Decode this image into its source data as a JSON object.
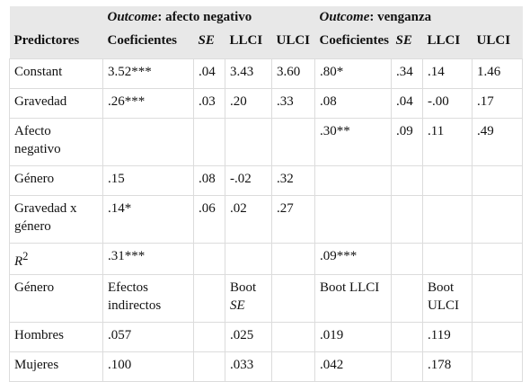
{
  "header": {
    "group1_label": "Outcome",
    "group1_rest": ": afecto negativo",
    "group2_label": "Outcome",
    "group2_rest": ": venganza",
    "columns": [
      "Predictores",
      "Coeficientes",
      "SE",
      "LLCI",
      "ULCI",
      "Coeficientes",
      "SE",
      "LLCI",
      "ULCI"
    ]
  },
  "rows": [
    [
      "Constant",
      "3.52***",
      ".04",
      "3.43",
      "3.60",
      ".80*",
      ".34",
      ".14",
      "1.46"
    ],
    [
      "Gravedad",
      ".26***",
      ".03",
      ".20",
      ".33",
      ".08",
      ".04",
      "-.00",
      ".17"
    ],
    [
      "Afecto negativo",
      "",
      "",
      "",
      "",
      ".30**",
      ".09",
      ".11",
      ".49"
    ],
    [
      "Género",
      ".15",
      ".08",
      "-.02",
      ".32",
      "",
      "",
      "",
      ""
    ],
    [
      "Gravedad x género",
      ".14*",
      ".06",
      ".02",
      ".27",
      "",
      "",
      "",
      ""
    ],
    [
      "R",
      ".31***",
      "",
      "",
      "",
      ".09***",
      "",
      "",
      ""
    ],
    [
      "Género",
      "Efectos indirectos",
      "",
      "Boot",
      "",
      "Boot LLCI",
      "",
      "Boot ULCI",
      ""
    ],
    [
      "Hombres",
      ".057",
      "",
      ".025",
      "",
      ".019",
      "",
      ".119",
      ""
    ],
    [
      "Mujeres",
      ".100",
      "",
      ".033",
      "",
      ".042",
      "",
      ".178",
      ""
    ]
  ],
  "r2_superscript": "2",
  "boot_se_suffix": "SE"
}
